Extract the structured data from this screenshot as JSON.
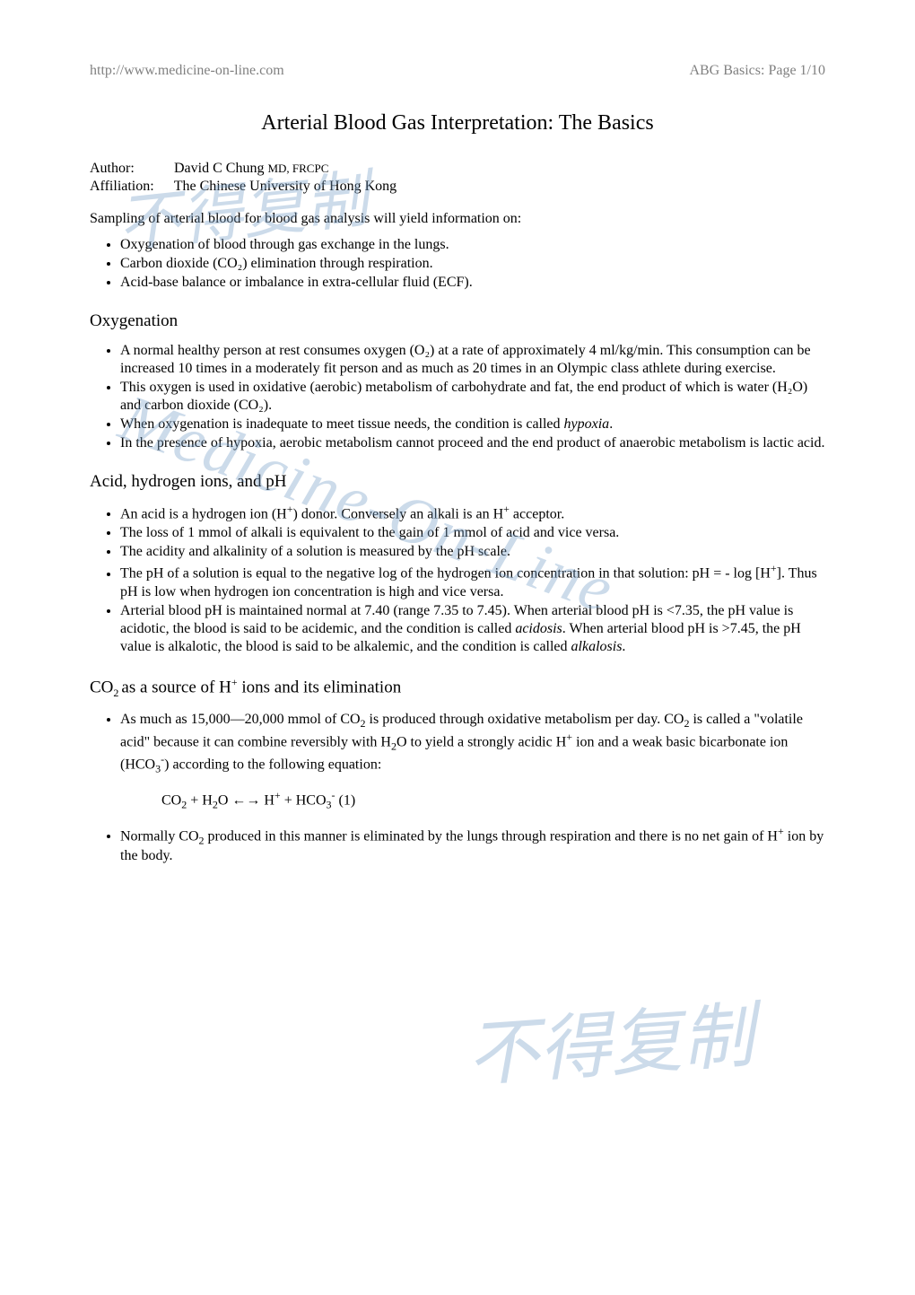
{
  "header": {
    "left": "http://www.medicine-on-line.com",
    "right": "ABG Basics: Page 1/10"
  },
  "title": "Arterial Blood Gas Interpretation: The Basics",
  "meta": {
    "author_label": "Author:",
    "author_value": "David C Chung ",
    "author_cred": "MD, FRCPC",
    "affil_label": "Affiliation:",
    "affil_value": "The Chinese University of Hong Kong"
  },
  "intro_para": "Sampling of arterial blood for blood gas analysis will yield information on:",
  "intro_bullets": [
    "Oxygenation of blood through gas exchange in the lungs.",
    "Carbon dioxide (CO₂) elimination through respiration.",
    "Acid-base balance or imbalance in extra-cellular fluid (ECF)."
  ],
  "sec_oxy": {
    "heading": "Oxygenation",
    "bullets": [
      "A normal healthy person at rest consumes oxygen (O₂) at a rate of approximately 4 ml/kg/min. This consumption can be increased 10 times in a moderately fit person and as much as 20 times in an Olympic class athlete during exercise.",
      "This oxygen is used in oxidative (aerobic) metabolism of carbohydrate and fat, the end product of which is water (H₂O) and carbon dioxide (CO₂).",
      "When oxygenation is inadequate to meet tissue needs, the condition is called ",
      "In the presence of hypoxia, aerobic metabolism cannot proceed and the end product of anaerobic metabolism is lactic acid."
    ],
    "hypoxia_word": "hypoxia"
  },
  "sec_acid": {
    "heading": "Acid, hydrogen ions, and pH",
    "b1_a": "An acid is a hydrogen ion (H",
    "b1_b": ") donor. Conversely an alkali is an H",
    "b1_c": " acceptor.",
    "b2": "The loss of 1 mmol of alkali is equivalent to the gain of 1 mmol of acid and vice versa.",
    "b3": "The acidity and alkalinity of a solution is measured by the pH scale.",
    "b4_a": "The pH of a solution is equal to the negative log of the hydrogen ion concentration in that solution: pH = - log [H",
    "b4_b": "]. Thus pH is low when hydrogen ion concentration is high and vice versa.",
    "b5_a": "Arterial blood pH is maintained normal at 7.40 (range 7.35 to 7.45). When arterial blood pH is <7.35, the pH value is acidotic, the blood is said to be acidemic, and the condition is called ",
    "b5_italic1": "acidosis",
    "b5_b": ". When arterial blood pH is >7.45, the pH value is alkalotic, the blood is said to be alkalemic, and the condition is called ",
    "b5_italic2": "alkalosis",
    "b5_c": "."
  },
  "sec_co2": {
    "heading_a": "CO",
    "heading_b": " as a source of H",
    "heading_c": " ions and its elimination",
    "b1_a": "As much as 15,000—20,000 mmol of CO",
    "b1_b": " is produced through oxidative metabolism per day. CO",
    "b1_c": " is called a \"volatile acid\" because it can combine reversibly with H",
    "b1_d": "O to yield a strongly acidic H",
    "b1_e": " ion and a weak basic bicarbonate ion (HCO",
    "b1_f": ") according to the following equation:",
    "eq_a": "CO",
    "eq_b": " + H",
    "eq_c": "O ←→ H",
    "eq_d": " + HCO",
    "eq_e": "        (1)",
    "b2_a": "Normally CO",
    "b2_b": " produced in this manner is eliminated by the lungs through respiration and there is no net gain of H",
    "b2_c": " ion by the body."
  },
  "watermarks": {
    "tl": "不得复制",
    "mid": "Medicine-On-Line",
    "br": "不得复制"
  }
}
